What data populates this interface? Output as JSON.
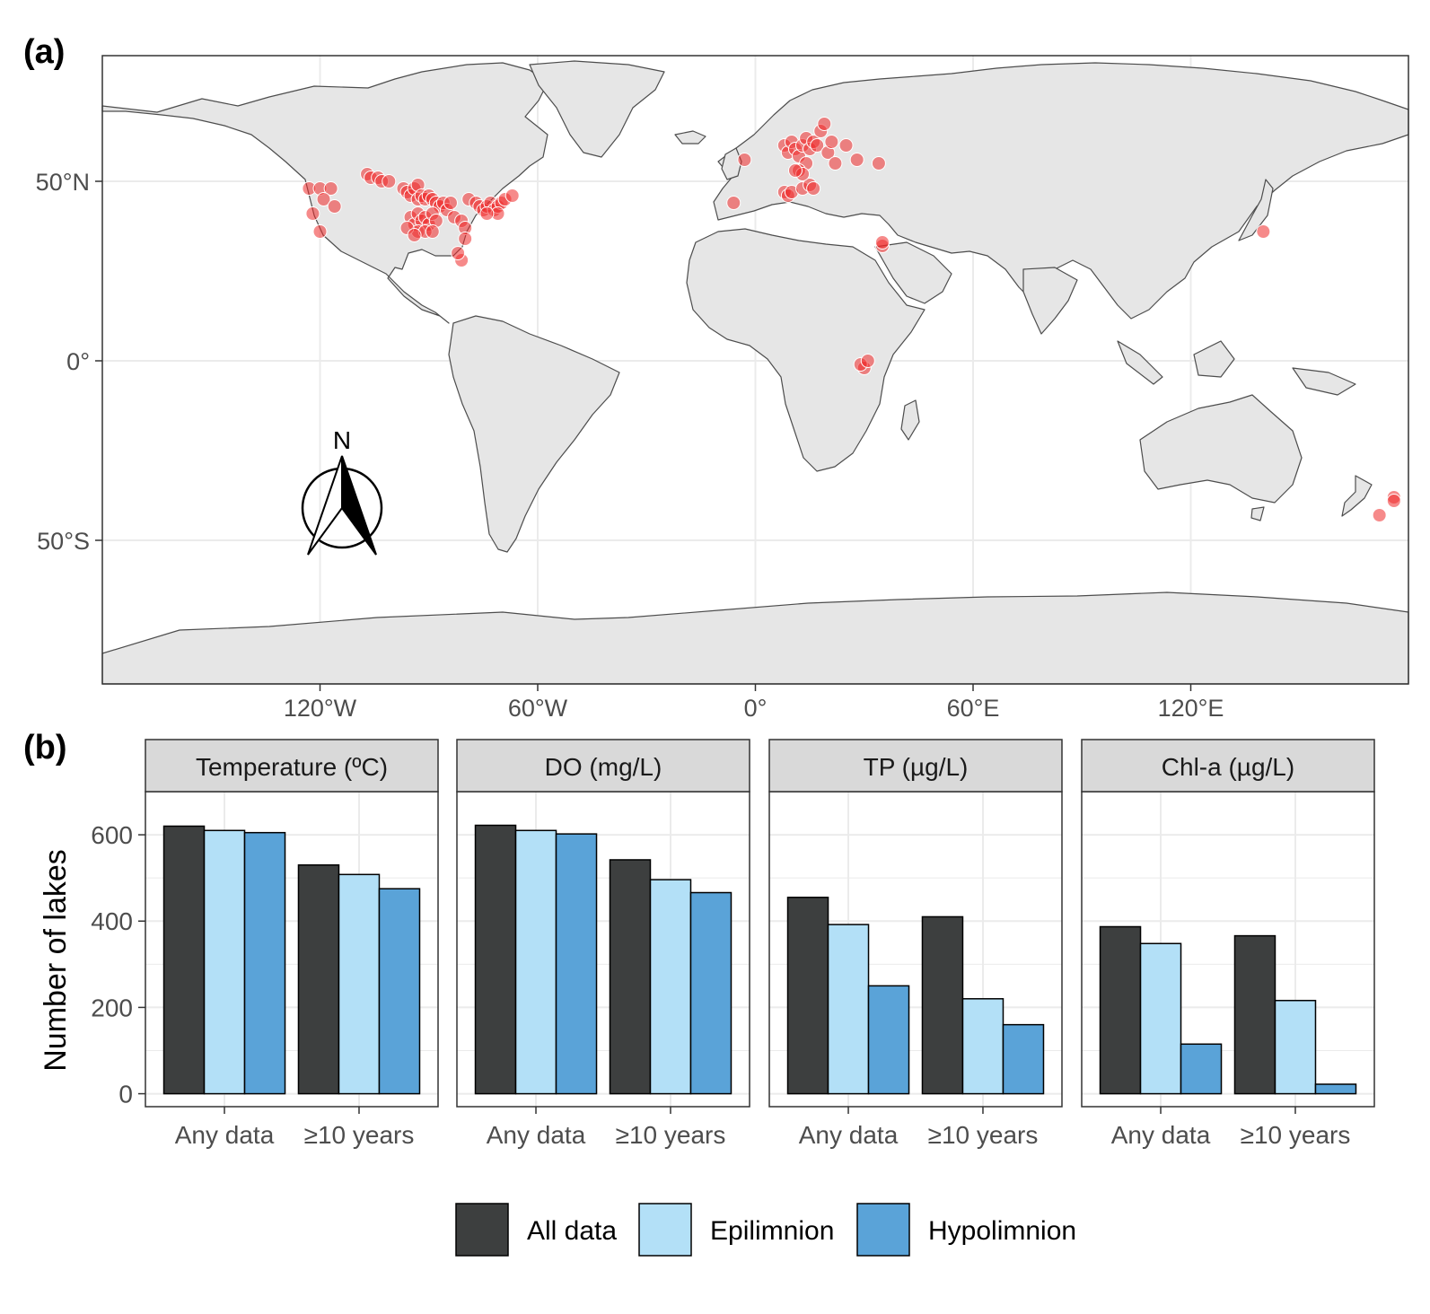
{
  "panels": {
    "a_label": "(a)",
    "b_label": "(b)"
  },
  "map": {
    "y_tick_labels": [
      "50°N",
      "0°",
      "50°S"
    ],
    "x_tick_labels": [
      "120°W",
      "60°W",
      "0°",
      "60°E",
      "120°E"
    ],
    "north_arrow_label": "N",
    "colors": {
      "ocean": "#ffffff",
      "land": "#e6e6e6",
      "border": "#4d4d4d",
      "point": "#ee2a2a",
      "grid": "#ebebeb"
    },
    "lon_range": [
      -180,
      180
    ],
    "lat_range": [
      -90,
      85
    ],
    "points": [
      [
        -123,
        48
      ],
      [
        -120,
        48
      ],
      [
        -117,
        48
      ],
      [
        -122,
        41
      ],
      [
        -120,
        36
      ],
      [
        -119,
        45
      ],
      [
        -116,
        43
      ],
      [
        -107,
        52
      ],
      [
        -106,
        51
      ],
      [
        -104,
        51
      ],
      [
        -103,
        50
      ],
      [
        -101,
        50
      ],
      [
        -97,
        48
      ],
      [
        -96,
        47
      ],
      [
        -95,
        46
      ],
      [
        -94,
        48
      ],
      [
        -93,
        49
      ],
      [
        -93,
        45
      ],
      [
        -92,
        46
      ],
      [
        -91,
        45
      ],
      [
        -90,
        46
      ],
      [
        -89,
        45
      ],
      [
        -88,
        44
      ],
      [
        -87,
        43
      ],
      [
        -86,
        44
      ],
      [
        -85,
        42
      ],
      [
        -95,
        40
      ],
      [
        -94,
        38
      ],
      [
        -93,
        41
      ],
      [
        -92,
        39
      ],
      [
        -91,
        40
      ],
      [
        -90,
        38
      ],
      [
        -89,
        41
      ],
      [
        -88,
        39
      ],
      [
        -93,
        36
      ],
      [
        -91,
        36
      ],
      [
        -96,
        37
      ],
      [
        -94,
        35
      ],
      [
        -89,
        36
      ],
      [
        -84,
        44
      ],
      [
        -83,
        40
      ],
      [
        -81,
        39
      ],
      [
        -80,
        37
      ],
      [
        -80,
        34
      ],
      [
        -81,
        28
      ],
      [
        -82,
        30
      ],
      [
        -79,
        45
      ],
      [
        -77,
        44
      ],
      [
        -76,
        43
      ],
      [
        -75,
        42
      ],
      [
        -74,
        43
      ],
      [
        -73,
        44
      ],
      [
        -72,
        42
      ],
      [
        -71,
        43
      ],
      [
        -70,
        44
      ],
      [
        -69,
        45
      ],
      [
        -67,
        46
      ],
      [
        -71,
        41
      ],
      [
        -74,
        41
      ],
      [
        -6,
        44
      ],
      [
        -3,
        56
      ],
      [
        8,
        60
      ],
      [
        9,
        58
      ],
      [
        10,
        61
      ],
      [
        11,
        59
      ],
      [
        12,
        57
      ],
      [
        13,
        60
      ],
      [
        14,
        62
      ],
      [
        15,
        59
      ],
      [
        16,
        61
      ],
      [
        17,
        60
      ],
      [
        18,
        64
      ],
      [
        19,
        66
      ],
      [
        20,
        58
      ],
      [
        21,
        61
      ],
      [
        22,
        55
      ],
      [
        25,
        60
      ],
      [
        28,
        56
      ],
      [
        14,
        55
      ],
      [
        12,
        53
      ],
      [
        8,
        47
      ],
      [
        9,
        46
      ],
      [
        10,
        47
      ],
      [
        13,
        48
      ],
      [
        15,
        49
      ],
      [
        16,
        48
      ],
      [
        13,
        52
      ],
      [
        11,
        53
      ],
      [
        34,
        55
      ],
      [
        35,
        32
      ],
      [
        35,
        33
      ],
      [
        30,
        -2
      ],
      [
        29,
        -1
      ],
      [
        31,
        0
      ],
      [
        140,
        36
      ],
      [
        176,
        -38
      ],
      [
        172,
        -43
      ],
      [
        176,
        -39
      ]
    ]
  },
  "chart_data": [
    {
      "type": "bar",
      "title": "Temperature (ºC)",
      "categories": [
        "Any data",
        "≥10 years"
      ],
      "series": [
        {
          "name": "All data",
          "values": [
            620,
            530
          ]
        },
        {
          "name": "Epilimnion",
          "values": [
            610,
            508
          ]
        },
        {
          "name": "Hypolimnion",
          "values": [
            605,
            475
          ]
        }
      ],
      "xlabel": "",
      "ylabel": "Number of lakes",
      "ylim": [
        0,
        700
      ],
      "y_ticks": [
        0,
        200,
        400,
        600
      ]
    },
    {
      "type": "bar",
      "title": "DO (mg/L)",
      "categories": [
        "Any data",
        "≥10 years"
      ],
      "series": [
        {
          "name": "All data",
          "values": [
            622,
            542
          ]
        },
        {
          "name": "Epilimnion",
          "values": [
            610,
            496
          ]
        },
        {
          "name": "Hypolimnion",
          "values": [
            602,
            466
          ]
        }
      ],
      "xlabel": "",
      "ylabel": "Number of lakes",
      "ylim": [
        0,
        700
      ],
      "y_ticks": [
        0,
        200,
        400,
        600
      ]
    },
    {
      "type": "bar",
      "title": "TP (µg/L)",
      "categories": [
        "Any data",
        "≥10 years"
      ],
      "series": [
        {
          "name": "All data",
          "values": [
            455,
            410
          ]
        },
        {
          "name": "Epilimnion",
          "values": [
            392,
            220
          ]
        },
        {
          "name": "Hypolimnion",
          "values": [
            250,
            160
          ]
        }
      ],
      "xlabel": "",
      "ylabel": "Number of lakes",
      "ylim": [
        0,
        700
      ],
      "y_ticks": [
        0,
        200,
        400,
        600
      ]
    },
    {
      "type": "bar",
      "title": "Chl-a (µg/L)",
      "categories": [
        "Any data",
        "≥10 years"
      ],
      "series": [
        {
          "name": "All data",
          "values": [
            387,
            366
          ]
        },
        {
          "name": "Epilimnion",
          "values": [
            348,
            216
          ]
        },
        {
          "name": "Hypolimnion",
          "values": [
            115,
            22
          ]
        }
      ],
      "xlabel": "",
      "ylabel": "Number of lakes",
      "ylim": [
        0,
        700
      ],
      "y_ticks": [
        0,
        200,
        400,
        600
      ]
    }
  ],
  "legend": {
    "items": [
      {
        "label": "All data",
        "color": "#3d3f3f"
      },
      {
        "label": "Epilimnion",
        "color": "#b3e0f7"
      },
      {
        "label": "Hypolimnion",
        "color": "#5aa3d8"
      }
    ]
  },
  "series_colors": [
    "#3d3f3f",
    "#b3e0f7",
    "#5aa3d8"
  ],
  "strip_color": "#d9d9d9",
  "grid_color": "#ebebeb"
}
